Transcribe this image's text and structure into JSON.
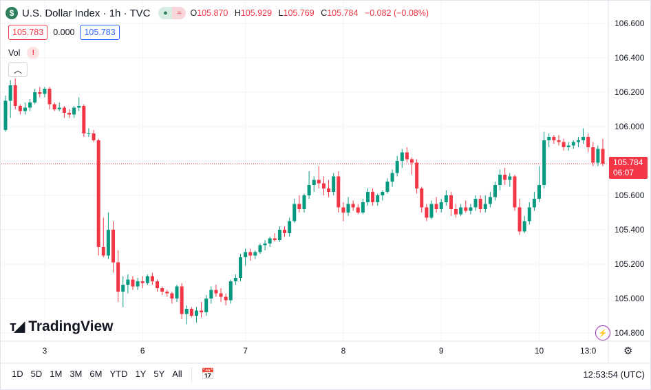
{
  "header": {
    "title": "U.S. Dollar Index · 1h · TVC",
    "symbol_icon": "dollar-icon",
    "pill_icon": "approx-icon",
    "ohlc": [
      {
        "k": "O",
        "v": "105.870"
      },
      {
        "k": "H",
        "v": "105.929"
      },
      {
        "k": "L",
        "v": "105.769"
      },
      {
        "k": "C",
        "v": "105.784"
      }
    ],
    "change": "−0.082 (−0.08%)"
  },
  "quote": {
    "bid": "105.783",
    "spread": "0.000",
    "ask": "105.783"
  },
  "volume": {
    "label": "Vol",
    "warning": "!"
  },
  "collapse_icon": "chevron-up-icon",
  "brand": "TradingView",
  "last_price": {
    "price": "105.784",
    "countdown": "06:07"
  },
  "time_ranges": [
    "1D",
    "5D",
    "1M",
    "3M",
    "6M",
    "YTD",
    "1Y",
    "5Y",
    "All"
  ],
  "clock": "12:53:54 (UTC)",
  "colors": {
    "up": "#089981",
    "down": "#f23645",
    "grid": "#f0f3fa",
    "accent": "#2962ff"
  },
  "chart_data": {
    "type": "candlestick",
    "y_axis_ticks": [
      104.8,
      105.0,
      105.2,
      105.4,
      105.6,
      105.8,
      106.0,
      106.2,
      106.4,
      106.6
    ],
    "ylim": [
      104.74,
      106.68
    ],
    "x_ticks": [
      {
        "label": "3",
        "index": 8
      },
      {
        "label": "6",
        "index": 28
      },
      {
        "label": "7",
        "index": 49
      },
      {
        "label": "8",
        "index": 69
      },
      {
        "label": "9",
        "index": 89
      },
      {
        "label": "10",
        "index": 109
      },
      {
        "label": "13:0",
        "index": 119
      }
    ],
    "last_price": 105.784,
    "candles": [
      [
        105.98,
        106.18,
        105.97,
        106.15
      ],
      [
        106.15,
        106.27,
        106.05,
        106.24
      ],
      [
        106.24,
        106.28,
        106.1,
        106.12
      ],
      [
        106.12,
        106.13,
        106.07,
        106.09
      ],
      [
        106.09,
        106.14,
        106.07,
        106.11
      ],
      [
        106.11,
        106.16,
        106.09,
        106.14
      ],
      [
        106.14,
        106.22,
        106.13,
        106.2
      ],
      [
        106.2,
        106.23,
        106.17,
        106.19
      ],
      [
        106.19,
        106.23,
        106.17,
        106.22
      ],
      [
        106.22,
        106.23,
        106.1,
        106.13
      ],
      [
        106.13,
        106.14,
        106.09,
        106.1
      ],
      [
        106.1,
        106.14,
        106.09,
        106.11
      ],
      [
        106.11,
        106.12,
        106.05,
        106.08
      ],
      [
        106.08,
        106.1,
        106.05,
        106.07
      ],
      [
        106.07,
        106.12,
        106.05,
        106.11
      ],
      [
        106.11,
        106.17,
        106.09,
        106.12
      ],
      [
        106.12,
        106.13,
        105.94,
        105.96
      ],
      [
        105.96,
        105.99,
        105.94,
        105.96
      ],
      [
        105.96,
        105.98,
        105.91,
        105.92
      ],
      [
        105.92,
        105.93,
        105.25,
        105.3
      ],
      [
        105.3,
        105.47,
        105.24,
        105.25
      ],
      [
        105.25,
        105.5,
        105.23,
        105.4
      ],
      [
        105.4,
        105.45,
        105.15,
        105.21
      ],
      [
        105.21,
        105.28,
        104.98,
        105.04
      ],
      [
        105.04,
        105.13,
        104.95,
        105.08
      ],
      [
        105.08,
        105.14,
        105.03,
        105.11
      ],
      [
        105.11,
        105.13,
        105.05,
        105.07
      ],
      [
        105.07,
        105.12,
        105.05,
        105.1
      ],
      [
        105.1,
        105.13,
        105.06,
        105.09
      ],
      [
        105.09,
        105.14,
        105.08,
        105.13
      ],
      [
        105.13,
        105.15,
        105.08,
        105.1
      ],
      [
        105.1,
        105.11,
        105.04,
        105.06
      ],
      [
        105.06,
        105.07,
        105.02,
        105.04
      ],
      [
        105.04,
        105.05,
        105.01,
        105.03
      ],
      [
        105.03,
        105.04,
        104.97,
        105.0
      ],
      [
        105.0,
        105.08,
        104.98,
        105.07
      ],
      [
        105.07,
        105.09,
        104.88,
        104.91
      ],
      [
        104.91,
        104.96,
        104.85,
        104.94
      ],
      [
        104.94,
        104.95,
        104.89,
        104.9
      ],
      [
        104.9,
        104.95,
        104.86,
        104.93
      ],
      [
        104.93,
        104.98,
        104.89,
        104.92
      ],
      [
        104.92,
        105.02,
        104.9,
        105.0
      ],
      [
        105.0,
        105.07,
        104.97,
        105.05
      ],
      [
        105.05,
        105.08,
        105.01,
        105.03
      ],
      [
        105.03,
        105.06,
        104.98,
        105.01
      ],
      [
        105.01,
        105.03,
        104.96,
        104.99
      ],
      [
        104.99,
        105.11,
        104.97,
        105.1
      ],
      [
        105.1,
        105.14,
        105.08,
        105.12
      ],
      [
        105.12,
        105.26,
        105.1,
        105.24
      ],
      [
        105.24,
        105.29,
        105.19,
        105.27
      ],
      [
        105.27,
        105.29,
        105.22,
        105.25
      ],
      [
        105.25,
        105.28,
        105.23,
        105.27
      ],
      [
        105.27,
        105.32,
        105.26,
        105.31
      ],
      [
        105.31,
        105.34,
        105.28,
        105.32
      ],
      [
        105.32,
        105.36,
        105.3,
        105.35
      ],
      [
        105.35,
        105.38,
        105.33,
        105.34
      ],
      [
        105.34,
        105.42,
        105.33,
        105.4
      ],
      [
        105.4,
        105.42,
        105.36,
        105.38
      ],
      [
        105.38,
        105.47,
        105.36,
        105.45
      ],
      [
        105.45,
        105.58,
        105.44,
        105.55
      ],
      [
        105.55,
        105.6,
        105.5,
        105.52
      ],
      [
        105.52,
        105.61,
        105.5,
        105.6
      ],
      [
        105.6,
        105.74,
        105.58,
        105.66
      ],
      [
        105.66,
        105.71,
        105.62,
        105.69
      ],
      [
        105.69,
        105.77,
        105.64,
        105.67
      ],
      [
        105.67,
        105.71,
        105.6,
        105.64
      ],
      [
        105.64,
        105.69,
        105.59,
        105.62
      ],
      [
        105.62,
        105.73,
        105.6,
        105.71
      ],
      [
        105.71,
        105.74,
        105.5,
        105.53
      ],
      [
        105.53,
        105.56,
        105.45,
        105.5
      ],
      [
        105.5,
        105.59,
        105.48,
        105.55
      ],
      [
        105.55,
        105.57,
        105.51,
        105.53
      ],
      [
        105.53,
        105.55,
        105.49,
        105.5
      ],
      [
        105.5,
        105.58,
        105.49,
        105.56
      ],
      [
        105.56,
        105.64,
        105.54,
        105.62
      ],
      [
        105.62,
        105.64,
        105.54,
        105.56
      ],
      [
        105.56,
        105.61,
        105.54,
        105.6
      ],
      [
        105.6,
        105.63,
        105.57,
        105.62
      ],
      [
        105.62,
        105.7,
        105.61,
        105.68
      ],
      [
        105.68,
        105.75,
        105.65,
        105.73
      ],
      [
        105.73,
        105.83,
        105.71,
        105.8
      ],
      [
        105.8,
        105.87,
        105.76,
        105.85
      ],
      [
        105.85,
        105.88,
        105.79,
        105.81
      ],
      [
        105.81,
        105.82,
        105.72,
        105.79
      ],
      [
        105.79,
        105.81,
        105.61,
        105.64
      ],
      [
        105.64,
        105.65,
        105.5,
        105.53
      ],
      [
        105.53,
        105.55,
        105.45,
        105.47
      ],
      [
        105.47,
        105.57,
        105.46,
        105.55
      ],
      [
        105.55,
        105.59,
        105.5,
        105.52
      ],
      [
        105.52,
        105.58,
        105.5,
        105.56
      ],
      [
        105.56,
        105.63,
        105.54,
        105.6
      ],
      [
        105.6,
        105.62,
        105.48,
        105.52
      ],
      [
        105.52,
        105.55,
        105.47,
        105.49
      ],
      [
        105.49,
        105.55,
        105.48,
        105.53
      ],
      [
        105.53,
        105.57,
        105.5,
        105.51
      ],
      [
        105.51,
        105.55,
        105.49,
        105.53
      ],
      [
        105.53,
        105.6,
        105.51,
        105.58
      ],
      [
        105.58,
        105.6,
        105.5,
        105.52
      ],
      [
        105.52,
        105.6,
        105.5,
        105.55
      ],
      [
        105.55,
        105.62,
        105.53,
        105.59
      ],
      [
        105.59,
        105.68,
        105.57,
        105.66
      ],
      [
        105.66,
        105.75,
        105.63,
        105.72
      ],
      [
        105.72,
        105.76,
        105.66,
        105.69
      ],
      [
        105.69,
        105.73,
        105.65,
        105.71
      ],
      [
        105.71,
        105.72,
        105.51,
        105.53
      ],
      [
        105.53,
        105.58,
        105.37,
        105.39
      ],
      [
        105.39,
        105.48,
        105.38,
        105.45
      ],
      [
        105.45,
        105.56,
        105.43,
        105.53
      ],
      [
        105.53,
        105.62,
        105.51,
        105.58
      ],
      [
        105.58,
        105.77,
        105.56,
        105.66
      ],
      [
        105.66,
        105.97,
        105.64,
        105.92
      ],
      [
        105.92,
        105.96,
        105.88,
        105.94
      ],
      [
        105.94,
        105.95,
        105.9,
        105.92
      ],
      [
        105.92,
        105.95,
        105.89,
        105.91
      ],
      [
        105.91,
        105.93,
        105.86,
        105.88
      ],
      [
        105.88,
        105.91,
        105.86,
        105.89
      ],
      [
        105.89,
        105.92,
        105.87,
        105.91
      ],
      [
        105.91,
        105.94,
        105.88,
        105.92
      ],
      [
        105.92,
        105.99,
        105.9,
        105.94
      ],
      [
        105.94,
        105.96,
        105.85,
        105.88
      ],
      [
        105.88,
        105.91,
        105.77,
        105.79
      ],
      [
        105.79,
        105.89,
        105.77,
        105.87
      ],
      [
        105.87,
        105.929,
        105.769,
        105.784
      ]
    ]
  }
}
